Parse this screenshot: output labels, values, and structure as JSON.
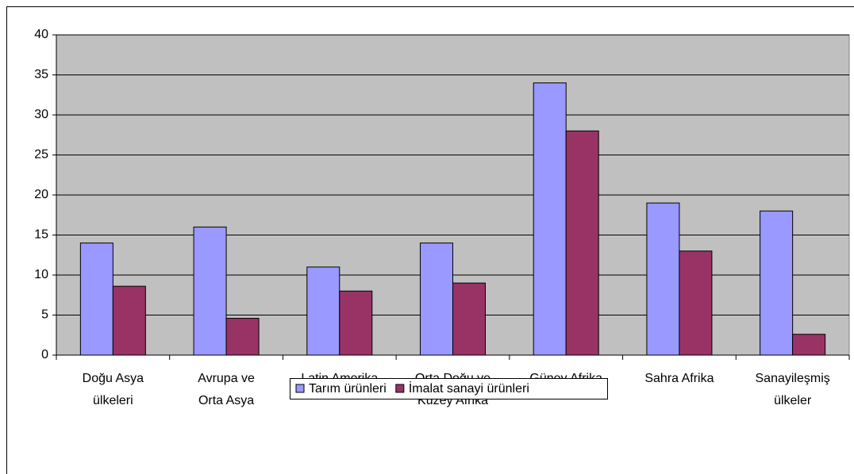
{
  "chart_data": {
    "type": "bar",
    "categories": [
      [
        "Doğu Asya",
        "ülkeleri"
      ],
      [
        "Avrupa ve",
        "Orta Asya"
      ],
      [
        "Latin Amerika"
      ],
      [
        "Orta Doğu ve",
        "Kuzey Afrika"
      ],
      [
        "Güney Afrika"
      ],
      [
        "Sahra Afrika"
      ],
      [
        "Sanayileşmiş",
        "ülkeler"
      ]
    ],
    "series": [
      {
        "name": "Tarım ürünleri",
        "color": "#9999ff",
        "values": [
          14,
          16,
          11,
          14,
          34,
          19,
          18
        ]
      },
      {
        "name": "İmalat sanayi ürünleri",
        "color": "#993366",
        "values": [
          8.6,
          4.6,
          8,
          9,
          28,
          13,
          2.6
        ]
      }
    ],
    "ylim": [
      0,
      40
    ],
    "yticks": [
      0,
      5,
      10,
      15,
      20,
      25,
      30,
      35,
      40
    ],
    "grid": true,
    "legend": "bottom"
  }
}
